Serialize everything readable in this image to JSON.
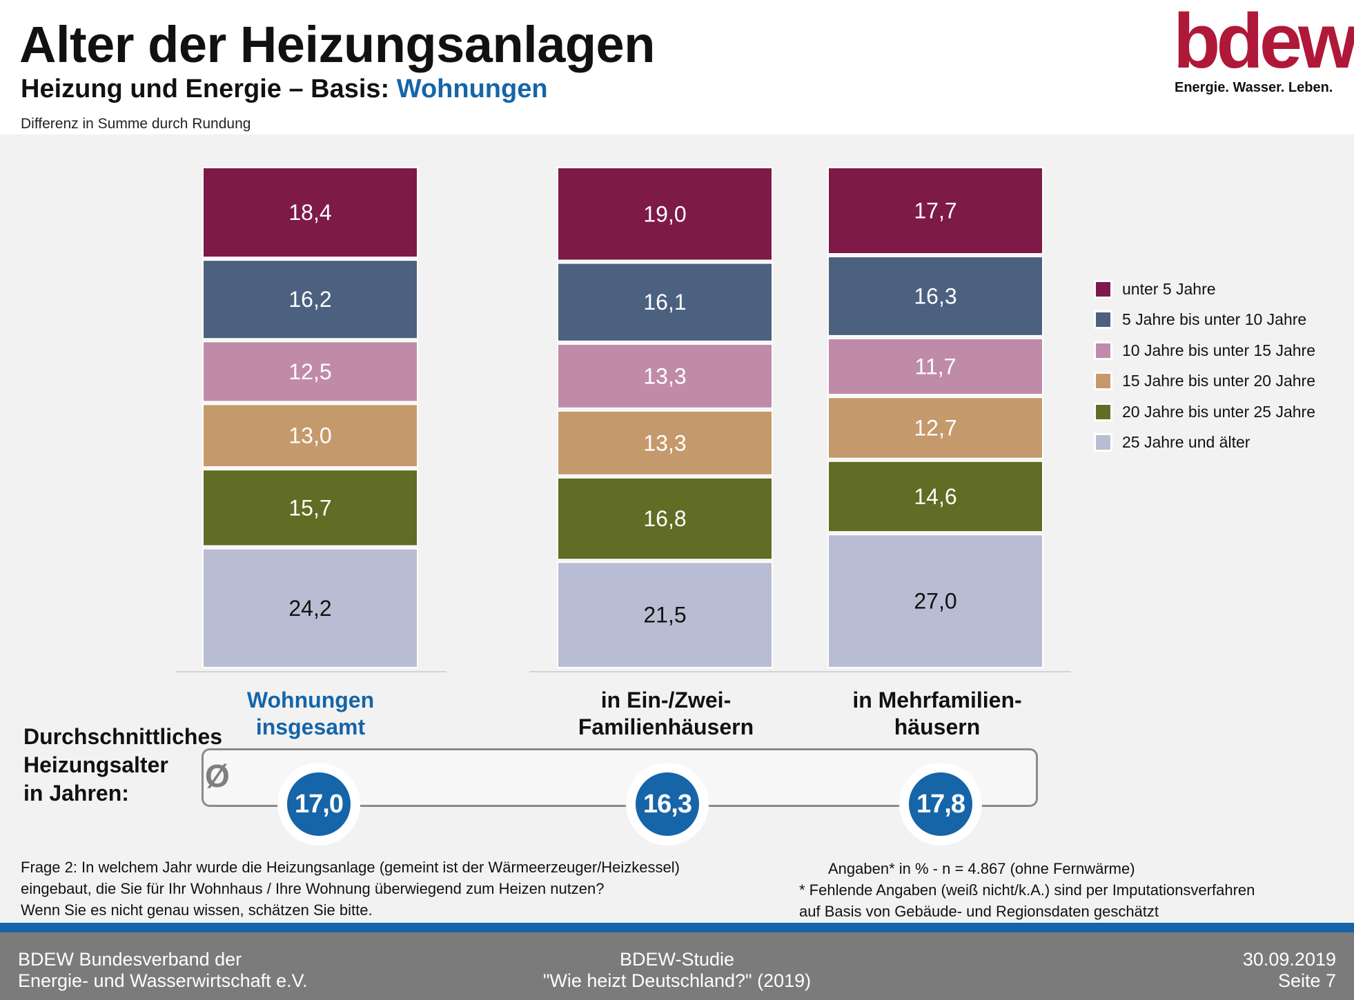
{
  "header": {
    "title": "Alter der Heizungsanlagen",
    "subtitle_prefix": "Heizung und Energie – Basis: ",
    "subtitle_highlight": "Wohnungen",
    "note": "Differenz in Summe durch Rundung"
  },
  "logo": {
    "word": "bdew",
    "tagline": "Energie. Wasser. Leben."
  },
  "colors": {
    "accent_blue": "#1565a8",
    "brand_red": "#b0183a"
  },
  "chart_data": {
    "type": "bar",
    "stacked": true,
    "categories": [
      "Wohnungen insgesamt",
      "in Ein-/Zwei-Familienhäusern",
      "in Mehrfamilien-häusern"
    ],
    "category_lines": [
      [
        "Wohnungen",
        "insgesamt"
      ],
      [
        "in Ein-/Zwei-",
        "Familienhäusern"
      ],
      [
        "in Mehrfamilien-",
        "häusern"
      ]
    ],
    "series": [
      {
        "name": "unter 5 Jahre",
        "color": "#7d1a48",
        "values": [
          18.4,
          19.0,
          17.7
        ],
        "labels": [
          "18,4",
          "19,0",
          "17,7"
        ],
        "label_color": "#ffffff"
      },
      {
        "name": "5 Jahre bis unter 10 Jahre",
        "color": "#4c617f",
        "values": [
          16.2,
          16.1,
          16.3
        ],
        "labels": [
          "16,2",
          "16,1",
          "16,3"
        ],
        "label_color": "#ffffff"
      },
      {
        "name": "10 Jahre bis unter 15 Jahre",
        "color": "#c08ba8",
        "values": [
          12.5,
          13.3,
          11.7
        ],
        "labels": [
          "12,5",
          "13,3",
          "11,7"
        ],
        "label_color": "#ffffff"
      },
      {
        "name": "15 Jahre bis unter 20 Jahre",
        "color": "#c49a6c",
        "values": [
          13.0,
          13.3,
          12.7
        ],
        "labels": [
          "13,0",
          "13,3",
          "12,7"
        ],
        "label_color": "#ffffff"
      },
      {
        "name": "20 Jahre bis unter 25 Jahre",
        "color": "#616c24",
        "values": [
          15.7,
          16.8,
          14.6
        ],
        "labels": [
          "15,7",
          "16,8",
          "14,6"
        ],
        "label_color": "#ffffff"
      },
      {
        "name": "25 Jahre und älter",
        "color": "#b9bdd3",
        "values": [
          24.2,
          21.5,
          27.0
        ],
        "labels": [
          "24,2",
          "21,5",
          "27,0"
        ],
        "label_color": "#111111"
      }
    ],
    "legend_position": "right",
    "grid": false,
    "unit": "%"
  },
  "average": {
    "label_lines": [
      "Durchschnittliches",
      "Heizungsalter",
      "in Jahren:"
    ],
    "symbol": "Ø",
    "values": [
      "17,0",
      "16,3",
      "17,8"
    ]
  },
  "footnotes": {
    "question": [
      "Frage 2: In welchem Jahr wurde die Heizungsanlage  (gemeint ist der Wärmeerzeuger/Heizkessel)",
      "eingebaut,  die Sie für Ihr  Wohnhaus  /  Ihre Wohnung  überwiegend zum Heizen  nutzen?",
      "Wenn Sie  es nicht genau wissen, schätzen Sie bitte."
    ],
    "sample": "Angaben* in % - n = 4.867  (ohne Fernwärme)",
    "imputation": [
      "* Fehlende  Angaben  (weiß nicht/k.A.) sind per Imputationsverfahren",
      "auf Basis von Gebäude-  und Regionsdaten  geschätzt"
    ]
  },
  "footer": {
    "left": [
      "BDEW Bundesverband der",
      "Energie- und Wasserwirtschaft e.V."
    ],
    "center": [
      "BDEW-Studie",
      "\"Wie heizt Deutschland?\" (2019)"
    ],
    "right": [
      "30.09.2019",
      "Seite 7"
    ]
  }
}
